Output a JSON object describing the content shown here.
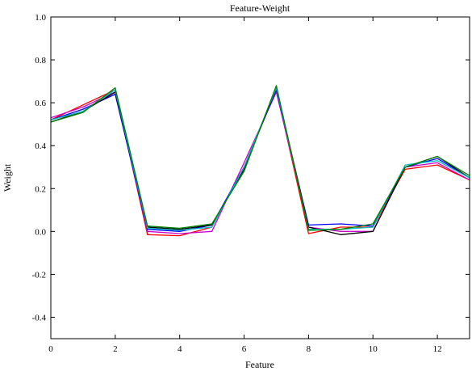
{
  "chart_data": {
    "type": "line",
    "title": "Feature-Weight",
    "xlabel": "Feature",
    "ylabel": "Weight",
    "xlim": [
      0,
      13
    ],
    "ylim": [
      -0.5,
      1.0
    ],
    "x_ticks": [
      0,
      2,
      4,
      6,
      8,
      10,
      12
    ],
    "y_ticks": [
      -0.4,
      -0.2,
      0.0,
      0.2,
      0.4,
      0.6,
      0.8,
      1.0
    ],
    "x_tick_labels": [
      "0",
      "2",
      "4",
      "6",
      "8",
      "10",
      "12"
    ],
    "y_tick_labels": [
      "-0.4",
      "-0.2",
      "0.0",
      "0.2",
      "0.4",
      "0.6",
      "0.8",
      "1.0"
    ],
    "grid": false,
    "x": [
      0,
      1,
      2,
      3,
      4,
      5,
      6,
      7,
      8,
      9,
      10,
      11,
      12,
      13
    ],
    "series": [
      {
        "color": "#ff0000",
        "values": [
          0.52,
          0.59,
          0.66,
          -0.015,
          -0.02,
          0.02,
          0.3,
          0.66,
          -0.01,
          0.02,
          0.02,
          0.29,
          0.31,
          0.24
        ]
      },
      {
        "color": "#cc00cc",
        "values": [
          0.53,
          0.58,
          0.65,
          0.0,
          -0.01,
          0.0,
          0.32,
          0.65,
          0.02,
          0.0,
          0.0,
          0.3,
          0.32,
          0.24
        ]
      },
      {
        "color": "#0000ff",
        "values": [
          0.52,
          0.57,
          0.64,
          0.01,
          0.0,
          0.03,
          0.3,
          0.66,
          0.03,
          0.035,
          0.025,
          0.3,
          0.34,
          0.25
        ]
      },
      {
        "color": "#000000",
        "values": [
          0.51,
          0.56,
          0.65,
          0.02,
          0.01,
          0.03,
          0.29,
          0.67,
          0.02,
          -0.015,
          0.0,
          0.3,
          0.35,
          0.25
        ]
      },
      {
        "color": "#00bfbf",
        "values": [
          0.52,
          0.56,
          0.66,
          0.015,
          0.005,
          0.02,
          0.3,
          0.67,
          0.01,
          0.01,
          0.02,
          0.31,
          0.33,
          0.25
        ]
      },
      {
        "color": "#008000",
        "values": [
          0.51,
          0.555,
          0.67,
          0.025,
          0.015,
          0.035,
          0.28,
          0.68,
          0.005,
          0.01,
          0.035,
          0.3,
          0.35,
          0.26
        ]
      }
    ]
  }
}
